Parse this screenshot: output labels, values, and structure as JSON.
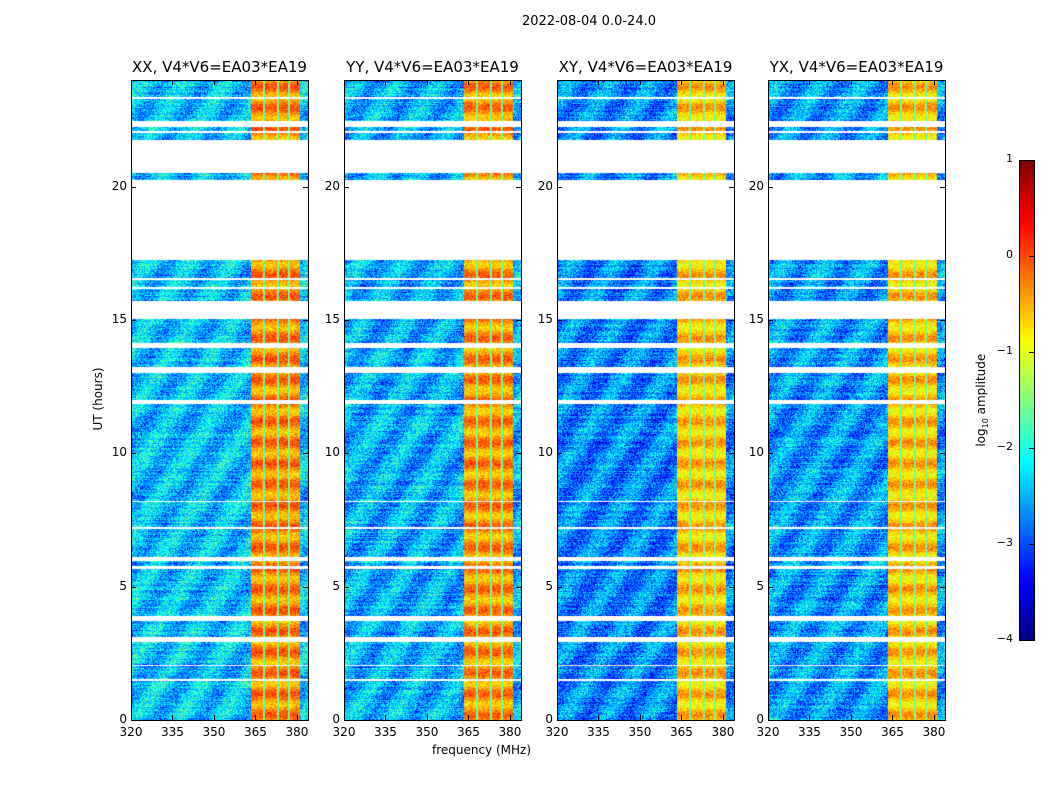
{
  "chart_data": {
    "type": "heatmap",
    "suptitle": "2022-08-04 0.0-24.0",
    "xlabel": "frequency (MHz)",
    "ylabel": "UT (hours)",
    "xlim": [
      320,
      384
    ],
    "ylim": [
      0,
      24
    ],
    "xticks": [
      320,
      335,
      350,
      365,
      380
    ],
    "yticks": [
      0,
      5,
      10,
      15,
      20
    ],
    "flagged_time_ranges_hours": [
      [
        22.3,
        22.5
      ],
      [
        22.05,
        22.15
      ],
      [
        20.55,
        21.8
      ],
      [
        17.3,
        20.3
      ],
      [
        15.07,
        15.75
      ],
      [
        13.98,
        14.17
      ],
      [
        13.05,
        13.27
      ],
      [
        11.89,
        12.04
      ],
      [
        6.0,
        6.15
      ],
      [
        5.7,
        5.81
      ],
      [
        3.75,
        3.93
      ],
      [
        2.96,
        3.15
      ],
      [
        16.2,
        16.3
      ],
      [
        16.55,
        16.62
      ],
      [
        8.2,
        8.25
      ],
      [
        7.2,
        7.25
      ],
      [
        1.5,
        1.55
      ],
      [
        2.05,
        2.1
      ],
      [
        23.35,
        23.42
      ]
    ],
    "high_amplitude_band_mhz": [
      363,
      381
    ],
    "band_gaps_mhz": [
      [
        367.5,
        368.3
      ],
      [
        372.5,
        373.3
      ],
      [
        376.5,
        377.3
      ]
    ],
    "panels": [
      {
        "title": "XX, V4*V6=EA03*EA19",
        "background_log_amp": -2.4,
        "band_log_amp": -0.3
      },
      {
        "title": "YY, V4*V6=EA03*EA19",
        "background_log_amp": -2.5,
        "band_log_amp": -0.35
      },
      {
        "title": "XY, V4*V6=EA03*EA19",
        "background_log_amp": -2.7,
        "band_log_amp": -0.6
      },
      {
        "title": "YX, V4*V6=EA03*EA19",
        "background_log_amp": -2.6,
        "band_log_amp": -0.6
      }
    ],
    "colorbar": {
      "label": "log10 amplitude",
      "label_main": "log",
      "label_sub": "10",
      "label_tail": " amplitude",
      "range": [
        -4,
        1
      ],
      "ticks": [
        "1",
        "0",
        "−1",
        "−2",
        "−3",
        "−4"
      ],
      "tick_values": [
        1,
        0,
        -1,
        -2,
        -3,
        -4
      ],
      "colormap": "jet"
    }
  }
}
